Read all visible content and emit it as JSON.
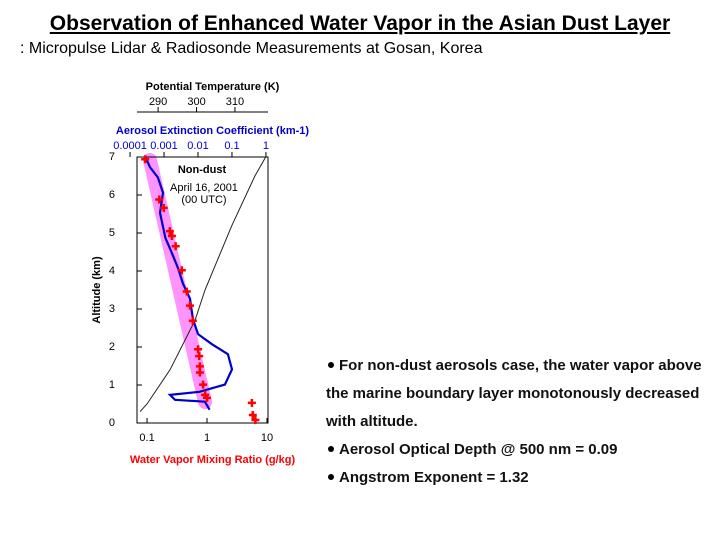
{
  "title": "Observation of Enhanced Water Vapor in the Asian Dust Layer",
  "subtitle": ": Micropulse Lidar & Radiosonde Measurements at Gosan, Korea",
  "chart_data": {
    "type": "line",
    "ylabel": "Altitude (km)",
    "ylim": [
      0,
      7
    ],
    "yticks": [
      0,
      1,
      2,
      3,
      4,
      5,
      6,
      7
    ],
    "xlabel": "Water Vapor Mixing Ratio (g/kg)",
    "xscale": "log",
    "xlim": [
      0.068,
      10.4
    ],
    "xticks": [
      0.1,
      1,
      10
    ],
    "x2label": "Aerosol Extinction Coefficient (km-1)",
    "x2scale": "log",
    "x2lim": [
      0.00016,
      1.15
    ],
    "x2ticks": [
      0.0001,
      0.001,
      0.01,
      0.1,
      1
    ],
    "x3label": "Potential Temperature (K)",
    "x3lim": [
      284.5,
      318.6
    ],
    "x3ticks": [
      290,
      300,
      310
    ],
    "annotations": [
      "Non-dust",
      "April 16, 2001",
      "(00 UTC)"
    ],
    "series": [
      {
        "axis": "x2",
        "color": "#0000cc",
        "x": [
          0.00028,
          0.00039,
          0.00066,
          0.00093,
          0.00076,
          0.0011,
          0.0017,
          0.0026,
          0.0036,
          0.0058,
          0.0071,
          0.01,
          0.026,
          0.076,
          0.1,
          0.062,
          0.011,
          0.0015,
          0.0021,
          0.016,
          0.022
        ],
        "y": [
          7,
          6.73,
          6.46,
          6.06,
          5.53,
          4.87,
          4.47,
          4.07,
          3.67,
          3.27,
          2.74,
          2.34,
          2.07,
          1.81,
          1.41,
          1.01,
          0.82,
          0.74,
          0.61,
          0.56,
          0.35
        ]
      },
      {
        "axis": "x3",
        "color": "#222222",
        "x": [
          285.3,
          287.1,
          293.1,
          299.6,
          302.2,
          309.2,
          315.2,
          318
        ],
        "y": [
          0.3,
          0.5,
          1.4,
          2.7,
          3.5,
          5.2,
          6.5,
          7
        ]
      },
      {
        "axis": "x",
        "color": "#ff0000",
        "marker": "+",
        "x": [
          0.093,
          0.16,
          0.19,
          0.24,
          0.26,
          0.3,
          0.38,
          0.46,
          0.52,
          0.58,
          0.71,
          0.74,
          0.76,
          0.76,
          0.86,
          0.93,
          1.0,
          5.6,
          5.8,
          6.4
        ],
        "y": [
          6.94,
          5.88,
          5.66,
          5.05,
          4.92,
          4.65,
          4.02,
          3.46,
          3.09,
          2.69,
          1.94,
          1.76,
          1.49,
          1.33,
          1.01,
          0.74,
          0.66,
          0.53,
          0.21,
          0.08
        ]
      }
    ]
  },
  "bullets": [
    "For non-dust aerosols case, the water vapor above the marine boundary layer monotonously decreased with altitude.",
    "Aerosol Optical Depth @ 500 nm = 0.09",
    "Angstrom Exponent = 1.32"
  ]
}
